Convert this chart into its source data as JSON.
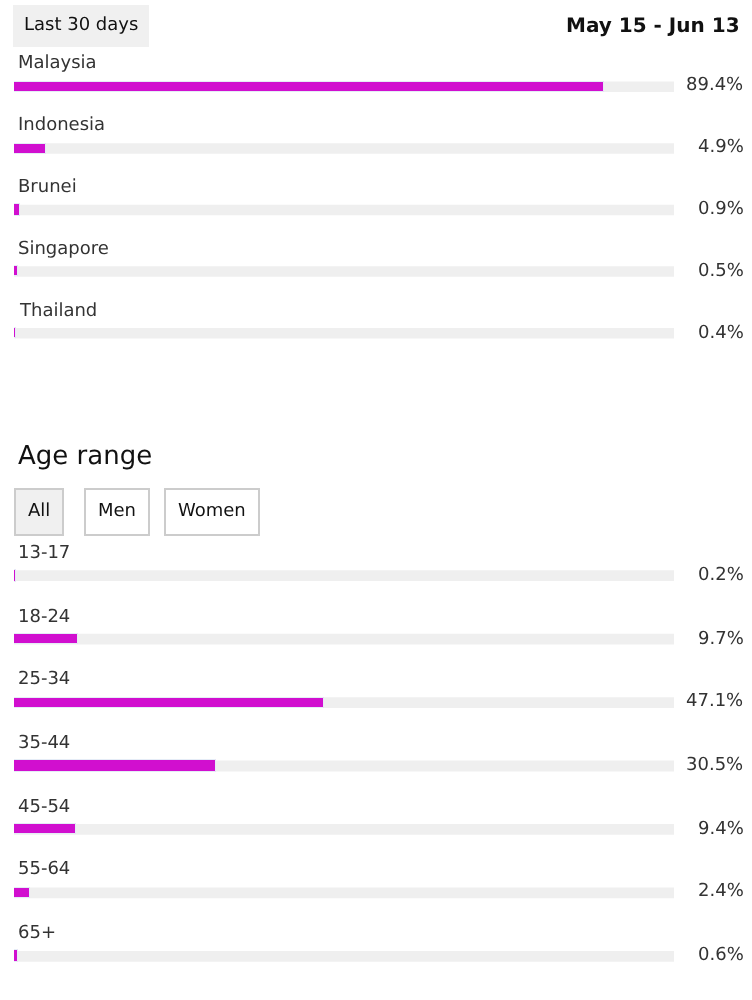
{
  "chart_data": [
    {
      "type": "bar",
      "orientation": "horizontal",
      "annotations": [
        "Last 30 days",
        "May 15 - Jun 13"
      ],
      "categories": [
        "Malaysia",
        "Indonesia",
        "Brunei",
        "Singapore",
        "Thailand"
      ],
      "values": [
        89.4,
        4.9,
        0.9,
        0.5,
        0.4
      ],
      "value_labels": [
        "89.4%",
        "4.9%",
        "0.9%",
        "0.5%",
        "0.4%"
      ],
      "color": "#d10fcf",
      "xlim": [
        0,
        100
      ],
      "tick_labels": "y"
    },
    {
      "type": "bar",
      "orientation": "horizontal",
      "title": "Age range",
      "annotations": [
        "All",
        "Men",
        "Women"
      ],
      "categories": [
        "13-17",
        "18-24",
        "25-34",
        "35-44",
        "45-54",
        "55-64",
        "65+"
      ],
      "values": [
        0.2,
        9.7,
        47.1,
        30.5,
        9.4,
        2.4,
        0.6
      ],
      "value_labels": [
        "0.2%",
        "9.7%",
        "47.1%",
        "30.5%",
        "9.4%",
        "2.4%",
        "0.6%"
      ],
      "color": "#d10fcf",
      "xlim": [
        0,
        100
      ],
      "tick_labels": "y"
    }
  ]
}
